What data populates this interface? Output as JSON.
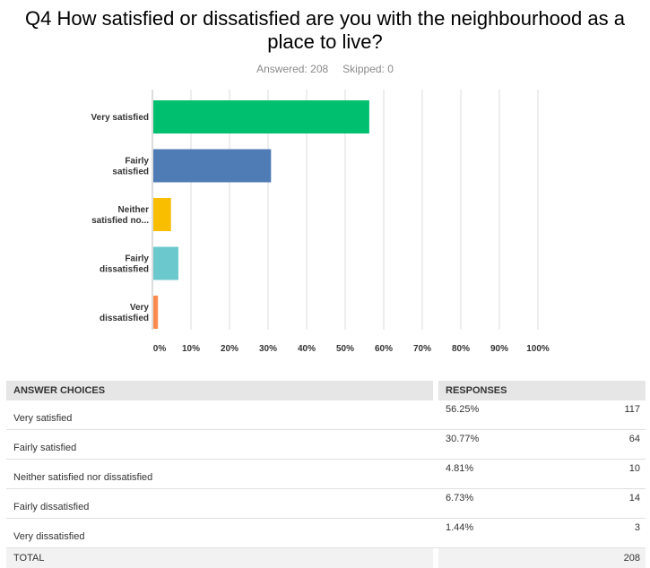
{
  "title_lines": [
    "Q4 How satisfied or dissatisfied are you with the neighbourhood as a",
    "place to live?"
  ],
  "answered": "Answered: 208",
  "skipped": "Skipped: 0",
  "colors": {
    "grid": "#dddddd",
    "axis": "#bbbbbb"
  },
  "chart_data": {
    "type": "bar",
    "orientation": "horizontal",
    "categories": [
      [
        "Very satisfied"
      ],
      [
        "Fairly",
        "satisfied"
      ],
      [
        "Neither",
        "satisfied no..."
      ],
      [
        "Fairly",
        "dissatisfied"
      ],
      [
        "Very",
        "dissatisfied"
      ]
    ],
    "values": [
      56.25,
      30.77,
      4.81,
      6.73,
      1.44
    ],
    "bar_colors": [
      "#00bf6f",
      "#507cb6",
      "#f9be00",
      "#6bc8cd",
      "#ff8b4f"
    ],
    "xlim": [
      0,
      100
    ],
    "ticks": [
      0,
      10,
      20,
      30,
      40,
      50,
      60,
      70,
      80,
      90,
      100
    ],
    "tick_labels": [
      "0%",
      "10%",
      "20%",
      "30%",
      "40%",
      "50%",
      "60%",
      "70%",
      "80%",
      "90%",
      "100%"
    ],
    "grid": true
  },
  "table": {
    "headers": [
      "ANSWER CHOICES",
      "RESPONSES"
    ],
    "rows": [
      {
        "choice": "Very satisfied",
        "pct": "56.25%",
        "count": "117"
      },
      {
        "choice": "Fairly satisfied",
        "pct": "30.77%",
        "count": "64"
      },
      {
        "choice": "Neither satisfied nor dissatisfied",
        "pct": "4.81%",
        "count": "10"
      },
      {
        "choice": "Fairly dissatisfied",
        "pct": "6.73%",
        "count": "14"
      },
      {
        "choice": "Very dissatisfied",
        "pct": "1.44%",
        "count": "3"
      }
    ],
    "total_label": "TOTAL",
    "total_count": "208"
  }
}
